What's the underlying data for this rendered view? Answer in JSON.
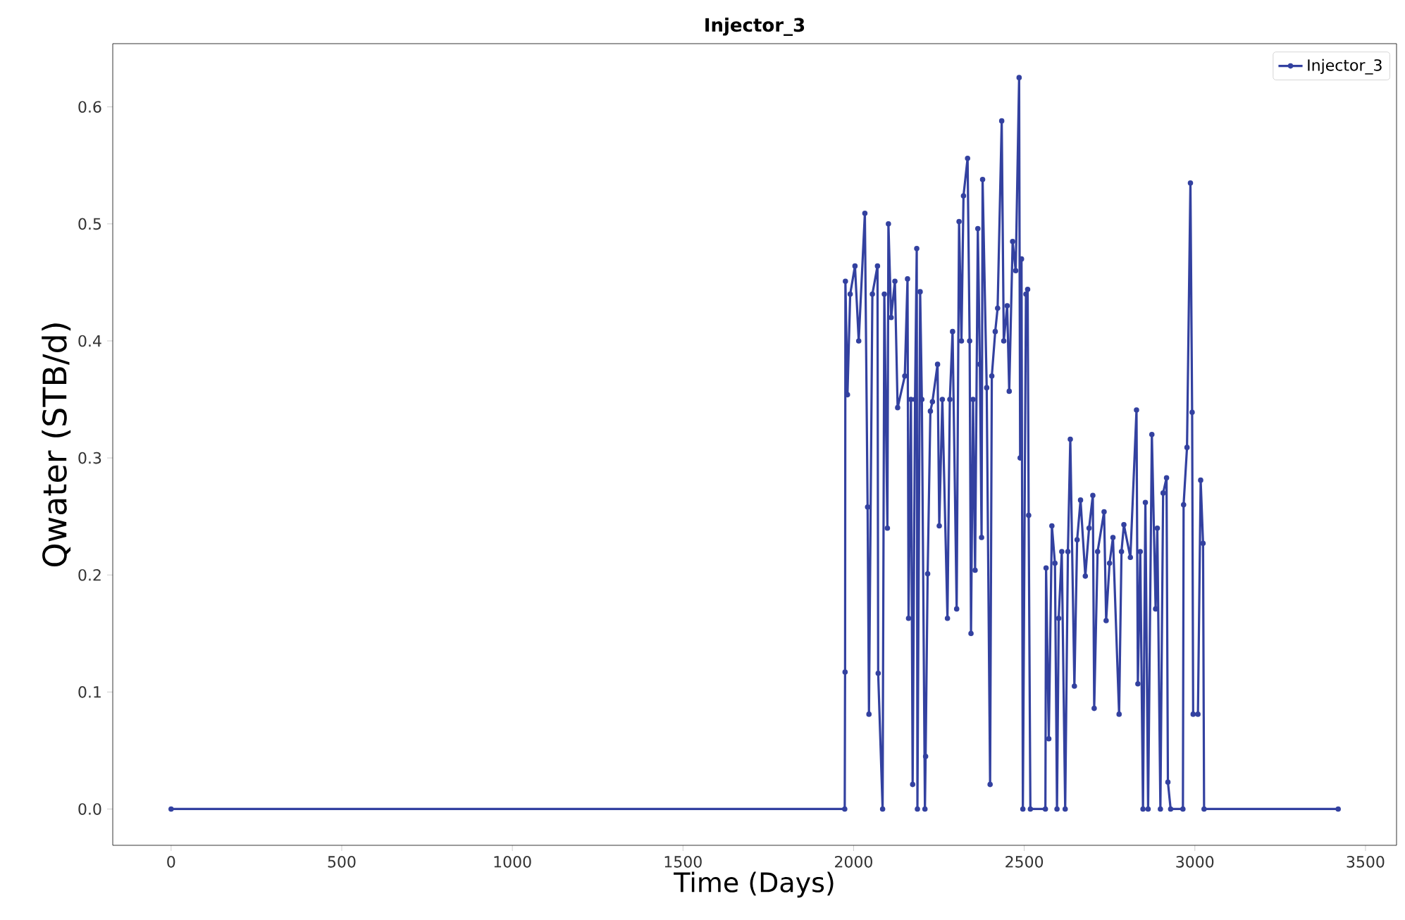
{
  "chart_data": {
    "type": "line",
    "title": "Injector_3",
    "xlabel": "Time (Days)",
    "ylabel": "Qwater (STB/d)",
    "xlim": [
      -171,
      3591
    ],
    "ylim": [
      -0.031,
      0.654
    ],
    "xticks": [
      0,
      500,
      1000,
      1500,
      2000,
      2500,
      3000,
      3500
    ],
    "yticks": [
      {
        "value": 0,
        "label": "0.0"
      },
      {
        "value": 0.1,
        "label": "0.1"
      },
      {
        "value": 0.2,
        "label": "0.2"
      },
      {
        "value": 0.3,
        "label": "0.3"
      },
      {
        "value": 0.4,
        "label": "0.4"
      },
      {
        "value": 0.5,
        "label": "0.5"
      },
      {
        "value": 0.6,
        "label": "0.6"
      }
    ],
    "legend": "top right",
    "marker": "circle",
    "line_style": "solid",
    "grid": false,
    "series": [
      {
        "name": "Injector_3",
        "color": "#3341a0",
        "x": [
          0,
          1974,
          1975,
          1976,
          1982,
          1990,
          2004,
          2015,
          2033,
          2041,
          2045,
          2055,
          2070,
          2072,
          2085,
          2090,
          2099,
          2102,
          2110,
          2121,
          2129,
          2150,
          2158,
          2161,
          2168,
          2173,
          2180,
          2185,
          2187,
          2195,
          2200,
          2209,
          2211,
          2217,
          2225,
          2231,
          2246,
          2251,
          2260,
          2275,
          2282,
          2290,
          2302,
          2309,
          2316,
          2322,
          2334,
          2340,
          2344,
          2350,
          2356,
          2364,
          2370,
          2375,
          2378,
          2390,
          2400,
          2405,
          2415,
          2422,
          2434,
          2440,
          2450,
          2456,
          2466,
          2475,
          2485,
          2488,
          2492,
          2496,
          2505,
          2510,
          2513,
          2518,
          2562,
          2564,
          2572,
          2581,
          2590,
          2596,
          2601,
          2610,
          2620,
          2628,
          2635,
          2647,
          2655,
          2665,
          2679,
          2690,
          2701,
          2705,
          2715,
          2734,
          2740,
          2750,
          2760,
          2778,
          2785,
          2792,
          2811,
          2829,
          2833,
          2840,
          2848,
          2855,
          2863,
          2874,
          2885,
          2890,
          2899,
          2907,
          2917,
          2921,
          2929,
          2965,
          2967,
          2977,
          2987,
          2992,
          2995,
          3009,
          3017,
          3024,
          3027,
          3420
        ],
        "values": [
          0,
          0,
          0.117,
          0.451,
          0.354,
          0.44,
          0.464,
          0.4,
          0.509,
          0.258,
          0.081,
          0.44,
          0.464,
          0.116,
          0,
          0.44,
          0.24,
          0.5,
          0.42,
          0.451,
          0.343,
          0.37,
          0.453,
          0.163,
          0.35,
          0.021,
          0.35,
          0.479,
          0,
          0.442,
          0.35,
          0,
          0.045,
          0.201,
          0.34,
          0.348,
          0.38,
          0.242,
          0.35,
          0.163,
          0.35,
          0.408,
          0.171,
          0.502,
          0.4,
          0.524,
          0.556,
          0.4,
          0.15,
          0.35,
          0.204,
          0.496,
          0.38,
          0.232,
          0.538,
          0.36,
          0.021,
          0.37,
          0.408,
          0.428,
          0.588,
          0.4,
          0.43,
          0.357,
          0.485,
          0.46,
          0.625,
          0.3,
          0.47,
          0,
          0.44,
          0.444,
          0.251,
          0,
          0,
          0.206,
          0.06,
          0.242,
          0.21,
          0,
          0.163,
          0.22,
          0,
          0.22,
          0.316,
          0.105,
          0.23,
          0.264,
          0.199,
          0.24,
          0.268,
          0.086,
          0.22,
          0.254,
          0.161,
          0.21,
          0.232,
          0.081,
          0.22,
          0.243,
          0.215,
          0.341,
          0.107,
          0.22,
          0,
          0.262,
          0,
          0.32,
          0.171,
          0.24,
          0,
          0.27,
          0.283,
          0.023,
          0,
          0,
          0.26,
          0.309,
          0.535,
          0.339,
          0.081,
          0.081,
          0.281,
          0.227,
          0,
          0
        ]
      }
    ]
  }
}
